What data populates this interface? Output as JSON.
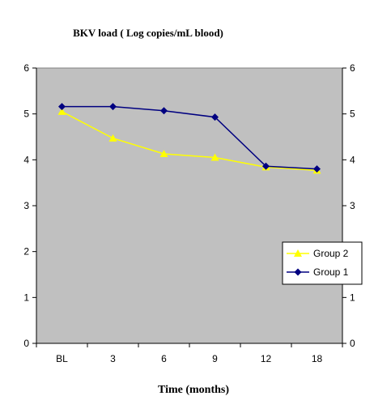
{
  "chart_data": {
    "type": "line",
    "title": "BKV load ( Log copies/mL blood)",
    "xlabel": "Time (months)",
    "ylabel": "",
    "categories": [
      "BL",
      "3",
      "6",
      "9",
      "12",
      "18"
    ],
    "ylim": [
      0,
      6
    ],
    "yticks": [
      0,
      1,
      2,
      3,
      4,
      5,
      6
    ],
    "y_axis_both_sides": true,
    "grid": false,
    "plot_background": "#c0c0c0",
    "legend_position": "right",
    "series": [
      {
        "name": "Group 2",
        "values": [
          5.05,
          4.47,
          4.13,
          4.05,
          3.84,
          3.77
        ],
        "color": "#ffff00",
        "marker": "triangle"
      },
      {
        "name": "Group 1",
        "values": [
          5.16,
          5.16,
          5.07,
          4.93,
          3.86,
          3.8
        ],
        "color": "#000080",
        "marker": "diamond"
      }
    ]
  }
}
